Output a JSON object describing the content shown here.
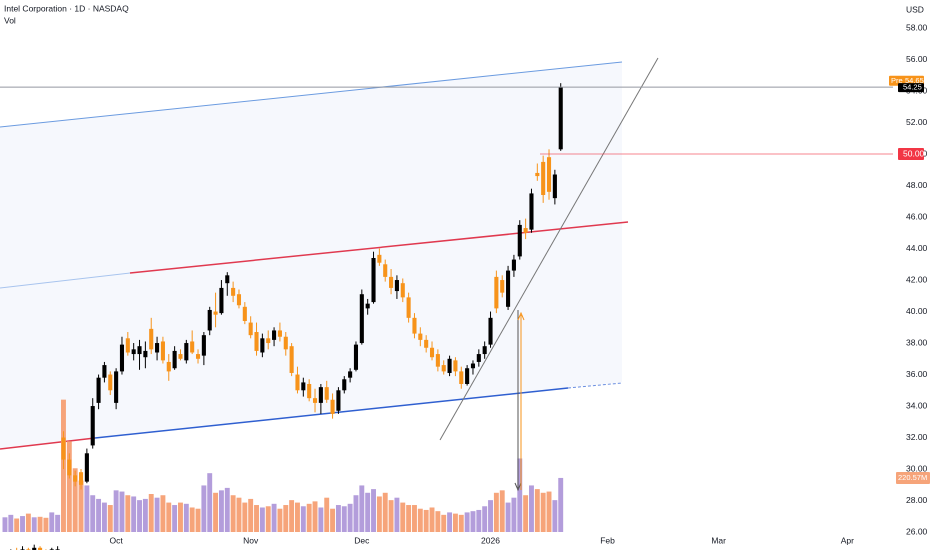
{
  "chart_data": {
    "type": "candlestick",
    "title": "Intel Corporation · 1D · NASDAQ",
    "volume_title": "Vol",
    "currency": "USD",
    "up_color": "#000000",
    "down_color": "#f7931a",
    "volume_up_color": "#b39ddb",
    "volume_down_color": "#f6a47a",
    "open": [
      24.3,
      24.4,
      24.8,
      24.5,
      24.9,
      24.7,
      25.0,
      24.8,
      24.6,
      24.9,
      32.0,
      30.6,
      29.6,
      29.8,
      29.2,
      31.5,
      34.2,
      35.8,
      36.0,
      34.2,
      36.2,
      38.3,
      37.3,
      37.3,
      37.1,
      38.9,
      37.4,
      38.1,
      36.8,
      36.4,
      37.3,
      36.9,
      38.1,
      37.3,
      37.2,
      38.8,
      40.0,
      39.9,
      41.8,
      41.5,
      41.1,
      40.3,
      39.3,
      38.7,
      37.4,
      38.3,
      38.2,
      38.8,
      38.4,
      37.8,
      36.0,
      35.0,
      35.4,
      34.5,
      34.2,
      35.2,
      34.4,
      33.7,
      35.0,
      35.8,
      36.3,
      38.0,
      40.2,
      40.6,
      43.6,
      43.0,
      42.2,
      41.3,
      41.8,
      40.9,
      39.6,
      38.6,
      38.2,
      37.7,
      37.3,
      36.6,
      36.1,
      36.9,
      36.2,
      35.4,
      36.4,
      36.8,
      37.3,
      37.9,
      42.2,
      42.0,
      40.3,
      42.6,
      43.5,
      45.3,
      45.2,
      48.8,
      49.5,
      49.8,
      47.2,
      50.3
    ],
    "high": [
      24.6,
      24.9,
      25.0,
      25.1,
      25.0,
      25.2,
      25.1,
      24.9,
      25.0,
      25.1,
      32.4,
      31.0,
      29.9,
      30.0,
      31.3,
      34.5,
      36.0,
      36.8,
      36.2,
      36.4,
      38.4,
      38.7,
      38.0,
      38.2,
      38.1,
      39.6,
      38.4,
      38.4,
      37.3,
      37.8,
      37.6,
      38.2,
      38.8,
      37.6,
      38.7,
      40.3,
      41.2,
      42.0,
      42.5,
      41.9,
      41.4,
      40.6,
      39.7,
      39.3,
      38.6,
      38.8,
      39.0,
      39.3,
      38.7,
      38.0,
      36.5,
      35.8,
      35.7,
      35.1,
      35.4,
      35.6,
      34.8,
      35.2,
      35.9,
      36.4,
      38.1,
      41.4,
      40.8,
      43.8,
      44.0,
      43.3,
      42.7,
      42.3,
      42.1,
      41.2,
      39.9,
      39.0,
      38.5,
      38.1,
      37.6,
      36.9,
      37.2,
      37.1,
      36.5,
      36.6,
      36.9,
      37.6,
      38.1,
      40.0,
      42.6,
      42.3,
      42.9,
      43.6,
      45.8,
      45.9,
      47.8,
      49.4,
      49.9,
      50.3,
      49.0,
      54.5
    ],
    "low": [
      24.0,
      24.2,
      24.3,
      24.4,
      24.5,
      24.6,
      24.6,
      24.4,
      24.5,
      24.7,
      30.0,
      29.4,
      28.9,
      28.7,
      29.1,
      31.3,
      33.8,
      35.5,
      34.7,
      33.8,
      36.0,
      37.2,
      36.9,
      36.3,
      36.4,
      37.3,
      36.9,
      36.7,
      35.6,
      36.3,
      36.9,
      36.7,
      37.3,
      36.7,
      36.6,
      38.5,
      39.0,
      39.8,
      41.0,
      40.6,
      40.2,
      39.2,
      38.3,
      37.2,
      37.1,
      37.6,
      37.8,
      38.1,
      37.2,
      35.9,
      34.8,
      34.6,
      34.3,
      33.6,
      33.5,
      34.2,
      33.2,
      33.5,
      34.8,
      35.5,
      36.2,
      37.9,
      39.8,
      40.5,
      42.9,
      41.9,
      41.1,
      40.8,
      40.6,
      39.3,
      38.3,
      37.8,
      37.4,
      36.9,
      36.2,
      36.0,
      35.9,
      35.9,
      35.1,
      35.3,
      36.0,
      36.5,
      37.0,
      37.7,
      39.9,
      40.9,
      40.1,
      42.2,
      43.3,
      44.6,
      45.0,
      48.3,
      46.9,
      47.1,
      46.8,
      50.2
    ],
    "close": [
      24.4,
      24.8,
      24.5,
      24.9,
      24.7,
      25.0,
      24.8,
      24.6,
      24.9,
      24.9,
      30.6,
      29.6,
      29.2,
      29.0,
      31.0,
      34.0,
      35.8,
      36.6,
      35.0,
      36.2,
      37.9,
      37.4,
      37.6,
      37.8,
      37.5,
      37.6,
      38.0,
      36.9,
      36.2,
      37.5,
      37.0,
      38.0,
      37.4,
      37.0,
      38.5,
      40.1,
      39.8,
      41.5,
      42.3,
      41.0,
      40.4,
      39.4,
      38.5,
      37.5,
      38.3,
      38.0,
      38.8,
      38.4,
      37.6,
      36.1,
      35.0,
      35.5,
      34.5,
      34.2,
      35.2,
      34.4,
      33.5,
      35.0,
      35.7,
      36.2,
      37.9,
      41.1,
      40.5,
      43.4,
      43.1,
      42.2,
      41.5,
      42.0,
      40.9,
      39.6,
      38.6,
      38.2,
      37.7,
      37.1,
      36.5,
      36.2,
      37.0,
      36.2,
      35.4,
      36.4,
      36.7,
      37.3,
      37.8,
      39.6,
      40.2,
      41.2,
      42.6,
      43.3,
      45.5,
      45.0,
      47.5,
      48.6,
      47.4,
      47.6,
      48.7,
      54.25
    ],
    "volume": {
      "values": [
        60,
        70,
        55,
        65,
        75,
        60,
        62,
        58,
        80,
        70,
        540,
        370,
        260,
        210,
        190,
        150,
        135,
        120,
        110,
        170,
        165,
        150,
        145,
        130,
        135,
        155,
        140,
        150,
        120,
        110,
        120,
        115,
        100,
        95,
        190,
        240,
        160,
        170,
        180,
        150,
        140,
        120,
        135,
        110,
        100,
        105,
        115,
        95,
        110,
        130,
        120,
        105,
        115,
        125,
        100,
        140,
        95,
        110,
        105,
        115,
        150,
        190,
        160,
        175,
        145,
        160,
        130,
        140,
        120,
        110,
        110,
        95,
        90,
        100,
        85,
        70,
        80,
        75,
        70,
        80,
        85,
        90,
        105,
        130,
        160,
        170,
        120,
        140,
        300,
        150,
        190,
        175,
        160,
        165,
        130,
        220.57
      ],
      "value_labels": [
        null,
        null,
        null,
        null,
        null,
        null,
        null,
        null,
        null,
        null,
        null,
        null,
        null,
        null,
        null,
        null,
        null,
        null,
        null,
        null,
        null,
        null,
        null,
        null,
        null,
        null,
        null,
        null,
        null,
        null,
        null,
        null,
        null,
        null,
        null,
        null,
        null,
        null,
        null,
        null,
        null,
        null,
        null,
        null,
        null,
        null,
        null,
        null,
        null,
        null,
        null,
        null,
        null,
        null,
        null,
        null,
        null,
        null,
        null,
        null,
        null,
        null,
        null,
        null,
        null,
        null,
        null,
        null,
        null,
        null,
        null,
        null,
        null,
        null,
        null,
        null,
        null,
        null,
        null,
        null,
        null,
        null,
        null,
        null,
        null,
        null,
        null,
        null,
        null,
        null,
        null,
        null,
        null,
        null,
        null,
        "220.57M"
      ],
      "ylim": [
        0,
        816
      ]
    },
    "premarket": {
      "label": "Pre",
      "value": 54.65,
      "color": "#f7931a"
    },
    "levels": [
      {
        "value": 50,
        "label": "50.00",
        "color": "#f23645"
      }
    ],
    "xlim": [
      -0.85,
      151.8
    ],
    "xticks": [
      {
        "value": 19,
        "label": "Oct"
      },
      {
        "value": 42,
        "label": "Nov"
      },
      {
        "value": 61,
        "label": "Dec"
      },
      {
        "value": 83,
        "label": "2026"
      },
      {
        "value": 103,
        "label": "Feb"
      },
      {
        "value": 122,
        "label": "Mar"
      },
      {
        "value": 144,
        "label": "Apr"
      }
    ],
    "ylim": [
      24.86,
      59.78
    ],
    "yticks": [
      {
        "value": 26,
        "label": "26.00"
      },
      {
        "value": 28,
        "label": "28.00"
      },
      {
        "value": 30,
        "label": "30.00"
      },
      {
        "value": 32,
        "label": "32.00"
      },
      {
        "value": 34,
        "label": "34.00"
      },
      {
        "value": 36,
        "label": "36.00"
      },
      {
        "value": 38,
        "label": "38.00"
      },
      {
        "value": 40,
        "label": "40.00"
      },
      {
        "value": 42,
        "label": "42.00"
      },
      {
        "value": 44,
        "label": "44.00"
      },
      {
        "value": 46,
        "label": "46.00"
      },
      {
        "value": 48,
        "label": "48.00"
      },
      {
        "value": 50,
        "label": "50.00"
      },
      {
        "value": 52,
        "label": "52.00"
      },
      {
        "value": 54,
        "label": "54.00"
      },
      {
        "value": 56,
        "label": "56.00"
      },
      {
        "value": 58,
        "label": "58.00"
      }
    ],
    "grid": false
  }
}
